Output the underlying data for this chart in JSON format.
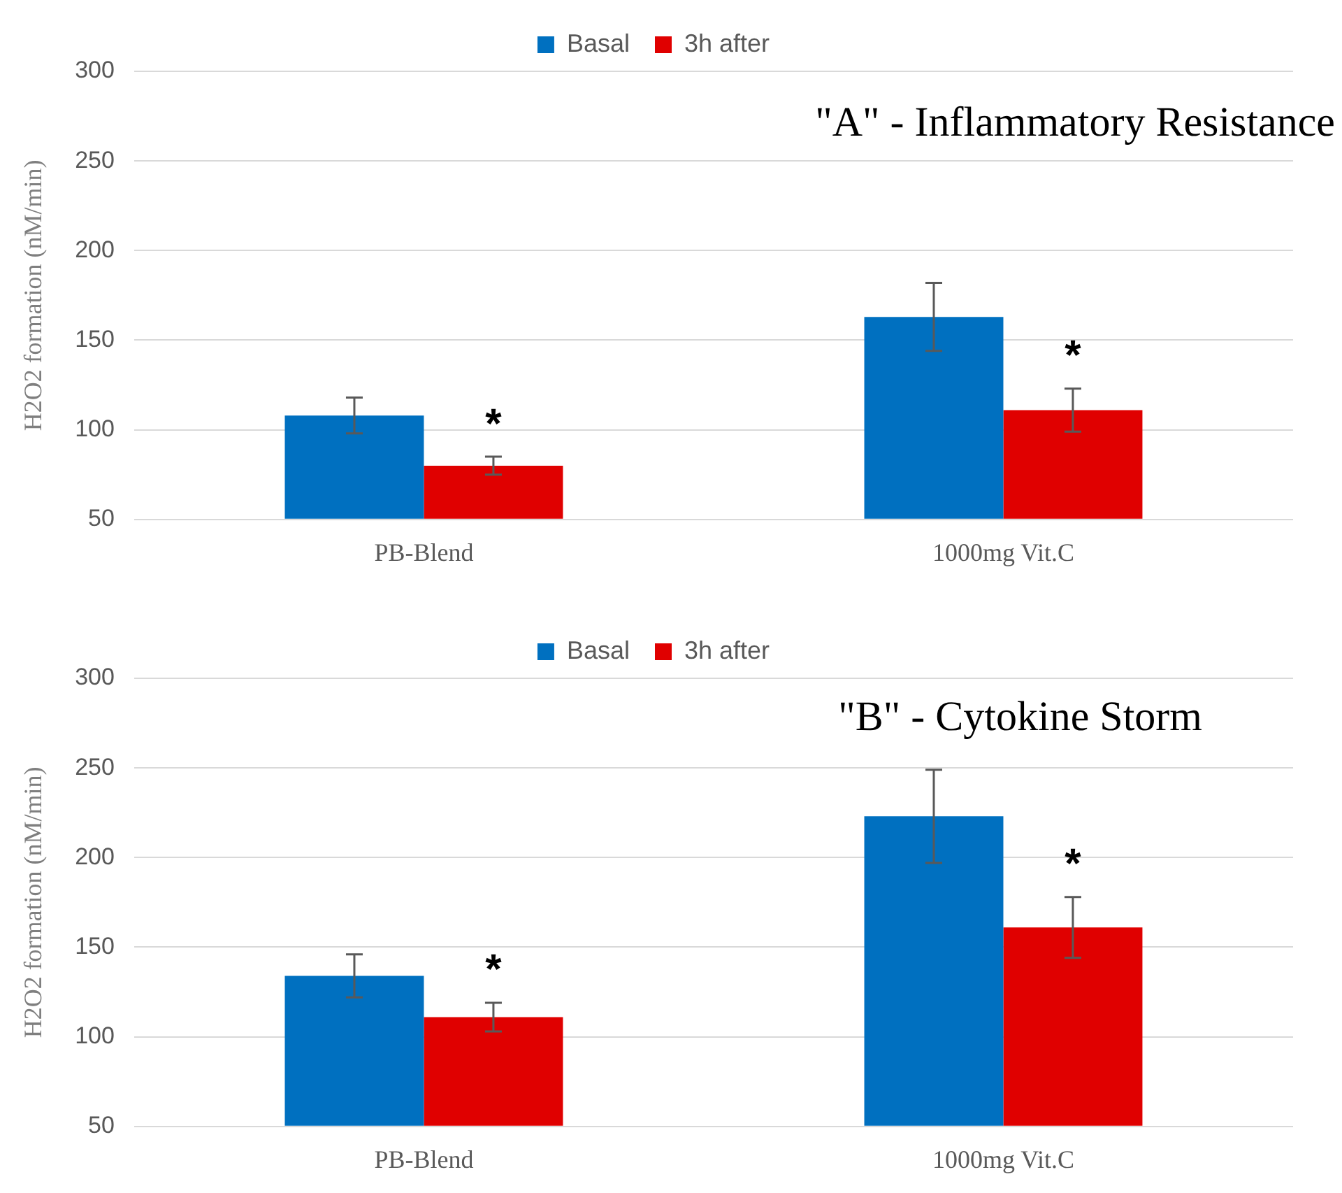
{
  "chart_data": [
    {
      "type": "bar",
      "title": "\"A\" - Inflammatory Resistance",
      "ylabel": "H2O2 formation (nM/min)",
      "categories": [
        "PB-Blend",
        "1000mg Vit.C"
      ],
      "series": [
        {
          "name": "Basal",
          "color": "#0070c0",
          "values": [
            108,
            163
          ],
          "errors": [
            10,
            19
          ]
        },
        {
          "name": "3h after",
          "color": "#e00000",
          "values": [
            80,
            111
          ],
          "errors": [
            5,
            12
          ]
        }
      ],
      "ylim": [
        50,
        300
      ],
      "yticks": [
        50,
        100,
        150,
        200,
        250,
        300
      ],
      "grid": "y",
      "legend": "top",
      "annotations": [
        {
          "text": "*",
          "x": "PB-Blend",
          "y": 85
        },
        {
          "text": "*",
          "x": "1000mg Vit.C",
          "y": 123
        }
      ]
    },
    {
      "type": "bar",
      "title": "\"B\" - Cytokine Storm",
      "ylabel": "H2O2 formation (nM/min)",
      "categories": [
        "PB-Blend",
        "1000mg Vit.C"
      ],
      "series": [
        {
          "name": "Basal",
          "color": "#0070c0",
          "values": [
            134,
            223
          ],
          "errors": [
            12,
            26
          ]
        },
        {
          "name": "3h after",
          "color": "#e00000",
          "values": [
            111,
            161
          ],
          "errors": [
            8,
            17
          ]
        }
      ],
      "ylim": [
        50,
        300
      ],
      "yticks": [
        50,
        100,
        150,
        200,
        250,
        300
      ],
      "grid": "y",
      "legend": "top",
      "annotations": [
        {
          "text": "*",
          "x": "PB-Blend",
          "y": 119
        },
        {
          "text": "*",
          "x": "1000mg Vit.C",
          "y": 178
        }
      ]
    }
  ]
}
